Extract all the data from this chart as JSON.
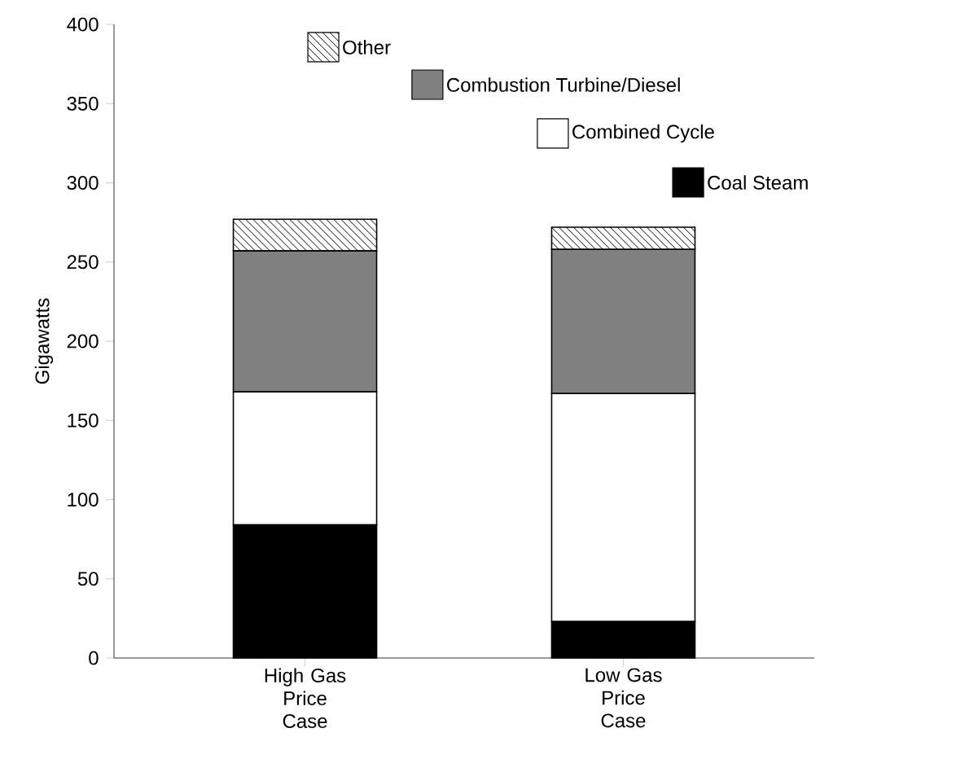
{
  "chart_data": {
    "type": "bar",
    "stacked": true,
    "ylabel": "Gigawatts",
    "categories": [
      "High Gas Price Case",
      "Low Gas Price Case"
    ],
    "series": [
      {
        "name": "Coal Steam",
        "color": "#000000",
        "values": [
          84,
          23
        ]
      },
      {
        "name": "Combined Cycle",
        "color": "#ffffff",
        "values": [
          84,
          144
        ]
      },
      {
        "name": "Combustion Turbine/Diesel",
        "color": "#808080",
        "values": [
          89,
          91
        ]
      },
      {
        "name": "Other",
        "color": "#ffffff",
        "values": [
          20,
          14
        ]
      }
    ],
    "ylim": [
      0,
      400
    ],
    "yticks": [
      0,
      50,
      100,
      150,
      200,
      250,
      300,
      350,
      400
    ],
    "legend": "top",
    "grid": false
  }
}
